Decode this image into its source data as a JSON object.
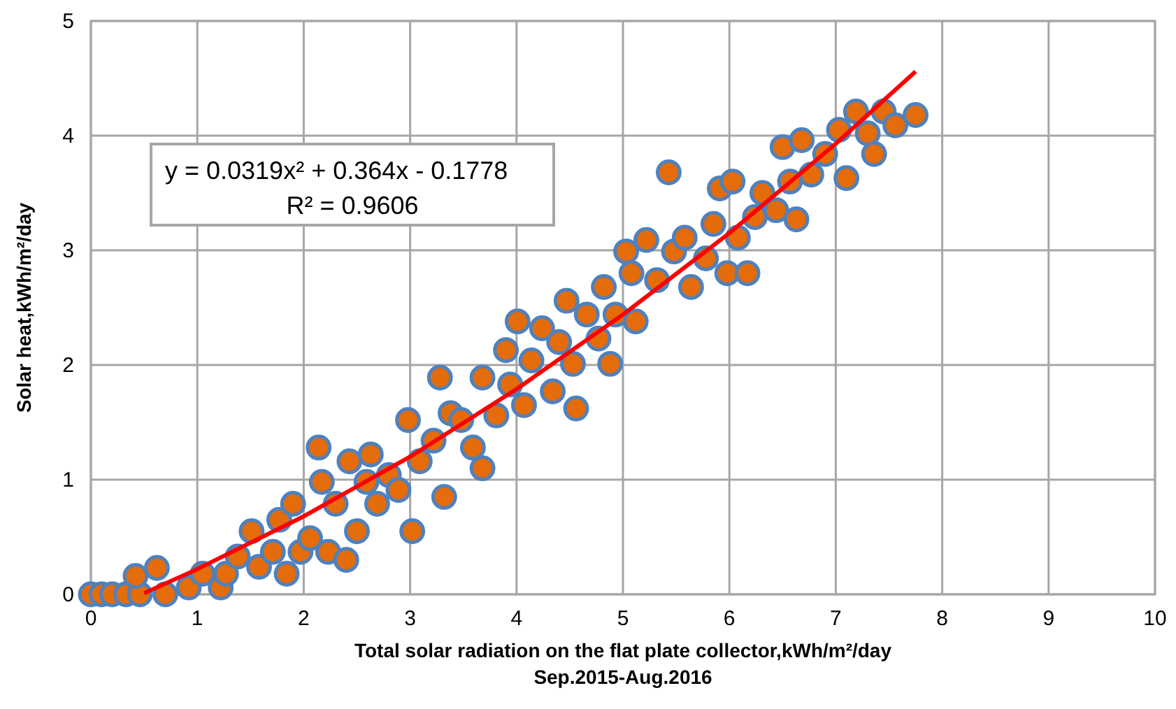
{
  "chart_data": {
    "type": "scatter",
    "xlabel": "Total solar radiation on the flat plate collector,kWh/m²/day",
    "ylabel": "Solar heat,kWh/m²/day",
    "annotations": [
      "Sep.2015-Aug.2016",
      "y = 0.0319x² + 0.364x - 0.1778\nR² = 0.9606"
    ],
    "xlim": [
      0,
      10
    ],
    "ylim": [
      0,
      5
    ],
    "xticks": [
      0,
      1,
      2,
      3,
      4,
      5,
      6,
      7,
      8,
      9,
      10
    ],
    "yticks": [
      0,
      1,
      2,
      3,
      4,
      5
    ],
    "grid": true,
    "series": [
      {
        "marker": "circle",
        "color": "#e46c0a",
        "x": [
          0,
          0.1,
          0.2,
          0.33,
          0.46,
          0.7,
          0.42,
          0.62,
          0.92,
          1.05,
          1.22,
          1.27,
          1.38,
          1.51,
          1.58,
          1.71,
          1.77,
          1.84,
          1.9,
          1.97,
          2.06,
          2.14,
          2.17,
          2.23,
          2.3,
          2.4,
          2.43,
          2.5,
          2.59,
          2.63,
          2.69,
          2.8,
          2.89,
          2.98,
          3.02,
          3.09,
          3.22,
          3.28,
          3.32,
          3.38,
          3.48,
          3.59,
          3.68,
          3.68,
          3.81,
          3.9,
          3.94,
          4.01,
          4.07,
          4.14,
          4.24,
          4.34,
          4.4,
          4.47,
          4.53,
          4.56,
          4.66,
          4.77,
          4.82,
          4.88,
          4.93,
          5.03,
          5.08,
          5.12,
          5.22,
          5.32,
          5.43,
          5.48,
          5.58,
          5.64,
          5.78,
          5.85,
          5.91,
          5.98,
          6.03,
          6.08,
          6.17,
          6.24,
          6.31,
          6.44,
          6.5,
          6.57,
          6.68,
          6.63,
          6.77,
          6.9,
          7.03,
          7.1,
          7.19,
          7.3,
          7.36,
          7.45,
          7.56,
          7.75
        ],
        "values": [
          0,
          0,
          0,
          0,
          0,
          0,
          0.16,
          0.23,
          0.06,
          0.18,
          0.06,
          0.18,
          0.33,
          0.55,
          0.24,
          0.37,
          0.65,
          0.18,
          0.79,
          0.37,
          0.49,
          1.28,
          0.98,
          0.37,
          0.79,
          0.3,
          1.16,
          0.55,
          0.98,
          1.22,
          0.79,
          1.04,
          0.91,
          1.52,
          0.55,
          1.16,
          1.34,
          1.89,
          0.85,
          1.58,
          1.52,
          1.28,
          1.1,
          1.89,
          1.56,
          2.13,
          1.83,
          2.38,
          1.65,
          2.04,
          2.32,
          1.77,
          2.2,
          2.56,
          2.01,
          1.62,
          2.44,
          2.23,
          2.68,
          2.01,
          2.44,
          2.99,
          2.8,
          2.38,
          3.09,
          2.74,
          3.68,
          2.99,
          3.11,
          2.68,
          2.93,
          3.23,
          3.54,
          2.8,
          3.6,
          3.11,
          2.8,
          3.29,
          3.5,
          3.35,
          3.9,
          3.6,
          3.96,
          3.27,
          3.66,
          3.84,
          4.05,
          3.63,
          4.21,
          4.02,
          3.84,
          4.21,
          4.09,
          4.18
        ]
      },
      {
        "type": "line",
        "color": "#ff0000",
        "x": [
          0.5,
          1,
          2,
          3,
          4,
          5,
          6,
          7,
          7.75
        ],
        "values": [
          0.01,
          0.22,
          0.68,
          1.2,
          1.79,
          2.44,
          3.15,
          3.93,
          4.56
        ]
      }
    ]
  }
}
